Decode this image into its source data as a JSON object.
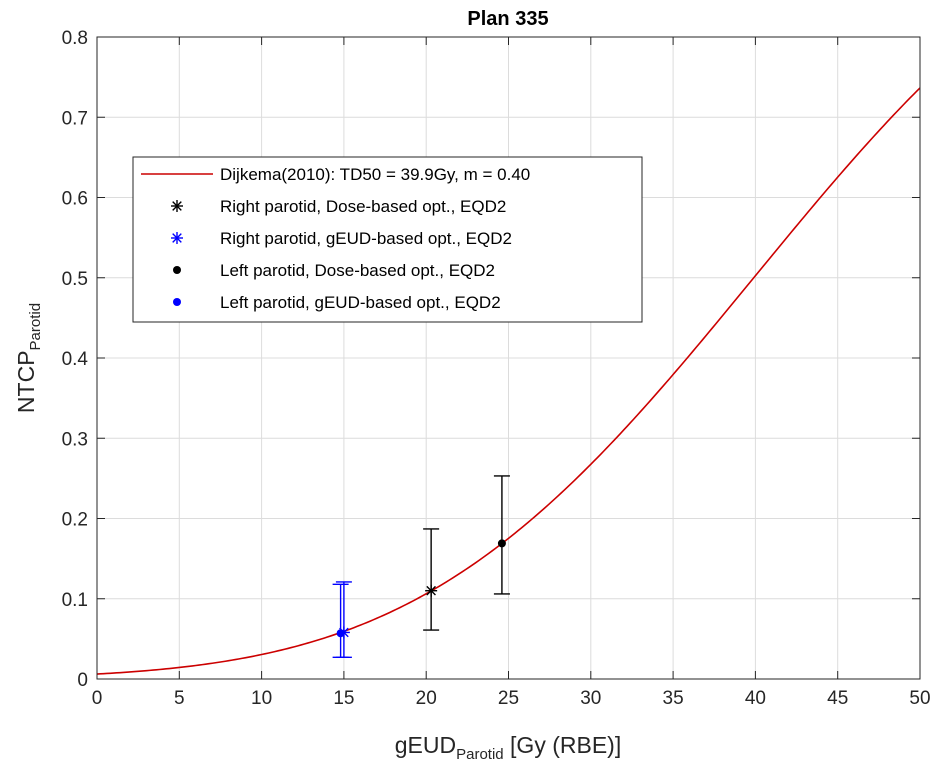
{
  "chart_data": {
    "type": "line",
    "title": "Plan 335",
    "xlabel": {
      "main": "gEUD",
      "sub": "Parotid",
      "suffix": " [Gy (RBE)]"
    },
    "ylabel": {
      "main": "NTCP",
      "sub": "Parotid"
    },
    "xlim": [
      0,
      50
    ],
    "ylim": [
      0,
      0.8
    ],
    "xticks": [
      0,
      5,
      10,
      15,
      20,
      25,
      30,
      35,
      40,
      45,
      50
    ],
    "yticks": [
      0,
      0.1,
      0.2,
      0.3,
      0.4,
      0.5,
      0.6,
      0.7,
      0.8
    ],
    "xtick_labels": [
      "0",
      "5",
      "10",
      "15",
      "20",
      "25",
      "30",
      "35",
      "40",
      "45",
      "50"
    ],
    "ytick_labels": [
      "0",
      "0.1",
      "0.2",
      "0.3",
      "0.4",
      "0.5",
      "0.6",
      "0.7",
      "0.8"
    ],
    "grid": true,
    "legend_position": "upper-left",
    "curve": {
      "name": "Dijkema(2010): TD50 = 39.9Gy, m = 0.40",
      "model": "LKB",
      "TD50": 39.9,
      "m": 0.4,
      "color": "#cc0000"
    },
    "series": [
      {
        "name": "Right parotid, Dose-based opt., EQD2",
        "marker": "asterisk",
        "color": "#000000",
        "points": [
          {
            "x": 20.3,
            "y": 0.11,
            "err_low": 0.061,
            "err_high": 0.187
          }
        ]
      },
      {
        "name": "Right parotid, gEUD-based opt., EQD2",
        "marker": "asterisk",
        "color": "#0000ff",
        "points": [
          {
            "x": 15.0,
            "y": 0.058,
            "err_low": 0.027,
            "err_high": 0.121
          }
        ]
      },
      {
        "name": "Left parotid, Dose-based opt., EQD2",
        "marker": "dot",
        "color": "#000000",
        "points": [
          {
            "x": 24.6,
            "y": 0.169,
            "err_low": 0.106,
            "err_high": 0.253
          }
        ]
      },
      {
        "name": "Left parotid, gEUD-based opt., EQD2",
        "marker": "dot",
        "color": "#0000ff",
        "points": [
          {
            "x": 14.8,
            "y": 0.057,
            "err_low": 0.027,
            "err_high": 0.118
          }
        ]
      }
    ]
  }
}
